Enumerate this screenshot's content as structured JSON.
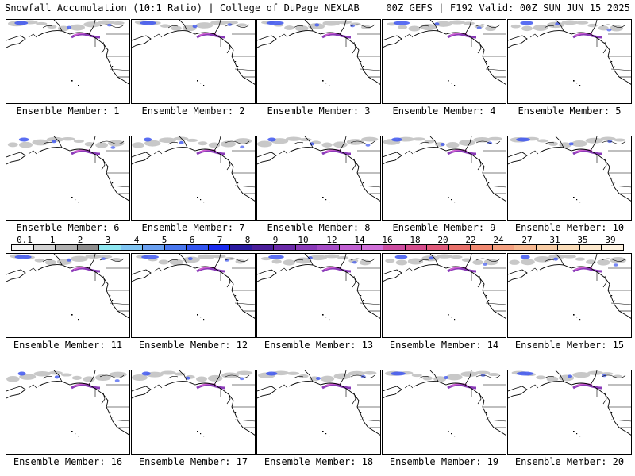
{
  "header": {
    "title_left": "Snowfall Accumulation (10:1 Ratio) | College of DuPage NEXLAB",
    "title_right": "00Z GEFS | F192 Valid: 00Z SUN JUN 15 2025"
  },
  "panels": [
    {
      "label": "Ensemble Member: 1"
    },
    {
      "label": "Ensemble Member: 2"
    },
    {
      "label": "Ensemble Member: 3"
    },
    {
      "label": "Ensemble Member: 4"
    },
    {
      "label": "Ensemble Member: 5"
    },
    {
      "label": "Ensemble Member: 6"
    },
    {
      "label": "Ensemble Member: 7"
    },
    {
      "label": "Ensemble Member: 8"
    },
    {
      "label": "Ensemble Member: 9"
    },
    {
      "label": "Ensemble Member: 10"
    },
    {
      "label": "Ensemble Member: 11"
    },
    {
      "label": "Ensemble Member: 12"
    },
    {
      "label": "Ensemble Member: 13"
    },
    {
      "label": "Ensemble Member: 14"
    },
    {
      "label": "Ensemble Member: 15"
    },
    {
      "label": "Ensemble Member: 16"
    },
    {
      "label": "Ensemble Member: 17"
    },
    {
      "label": "Ensemble Member: 18"
    },
    {
      "label": "Ensemble Member: 19"
    },
    {
      "label": "Ensemble Member: 20"
    }
  ],
  "colorbar": {
    "ticks": [
      "0.1",
      "1",
      "2",
      "3",
      "4",
      "5",
      "6",
      "7",
      "8",
      "9",
      "10",
      "12",
      "14",
      "16",
      "18",
      "20",
      "22",
      "24",
      "27",
      "31",
      "35",
      "39"
    ],
    "colors": [
      "#f4f4f4",
      "#d2d2d2",
      "#b0b0b0",
      "#8e8e8e",
      "#8ee6f0",
      "#7fc4f2",
      "#6aa0f0",
      "#4a78ef",
      "#3355f0",
      "#1a2bee",
      "#2a1aa0",
      "#4b1e9a",
      "#6a2aa8",
      "#8a3ab8",
      "#a54cc6",
      "#c060d2",
      "#d070d8",
      "#cc4ca0",
      "#d44c8c",
      "#e05a7a",
      "#e8706a",
      "#f08870",
      "#f4a080",
      "#f6b890",
      "#f8cca4",
      "#fadcb8",
      "#fce8cc",
      "#fef2e0"
    ]
  },
  "colors": {
    "snow_light": "#c8c8c8",
    "snow_blue": "#3d55f0",
    "snow_purple": "#8a3ab8",
    "snow_magenta": "#d060d0"
  }
}
